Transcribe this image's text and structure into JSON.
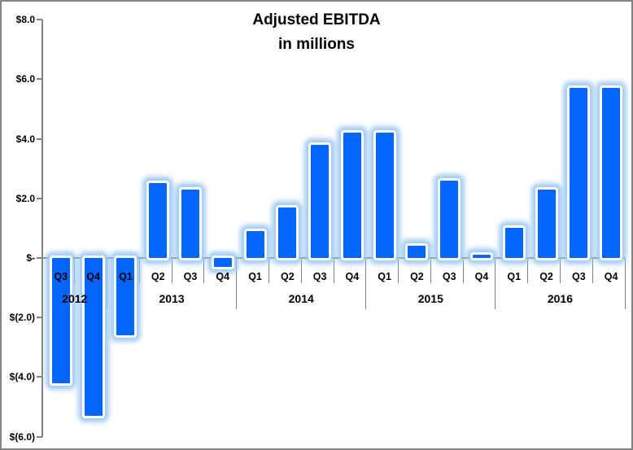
{
  "chart_data": {
    "type": "bar",
    "title": "Adjusted EBITDA",
    "subtitle": "in millions",
    "ylim": [
      -6.0,
      8.0
    ],
    "y_tick_interval": 2.0,
    "grid": false,
    "legend": "none",
    "y_ticks": [
      {
        "label": "$8.0",
        "value": 8.0
      },
      {
        "label": "$6.0",
        "value": 6.0
      },
      {
        "label": "$4.0",
        "value": 4.0
      },
      {
        "label": "$2.0",
        "value": 2.0
      },
      {
        "label": "$-",
        "value": 0.0
      },
      {
        "label": "$(2.0)",
        "value": -2.0
      },
      {
        "label": "$(4.0)",
        "value": -4.0
      },
      {
        "label": "$(6.0)",
        "value": -6.0
      }
    ],
    "groups": [
      {
        "year": "2012",
        "quarters": [
          "Q3",
          "Q4"
        ],
        "values": [
          -4.2,
          -5.3
        ]
      },
      {
        "year": "2013",
        "quarters": [
          "Q1",
          "Q2",
          "Q3",
          "Q4"
        ],
        "values": [
          -2.6,
          2.5,
          2.3,
          -0.3
        ]
      },
      {
        "year": "2014",
        "quarters": [
          "Q1",
          "Q2",
          "Q3",
          "Q4"
        ],
        "values": [
          0.9,
          1.7,
          3.8,
          4.2
        ]
      },
      {
        "year": "2015",
        "quarters": [
          "Q1",
          "Q2",
          "Q3",
          "Q4"
        ],
        "values": [
          4.2,
          0.4,
          2.6,
          0.1
        ]
      },
      {
        "year": "2016",
        "quarters": [
          "Q1",
          "Q2",
          "Q3",
          "Q4"
        ],
        "values": [
          1.0,
          2.3,
          5.7,
          5.7
        ]
      }
    ],
    "colors": {
      "bar_fill": "#0066FF",
      "bar_outline": "#FFFFFF",
      "bar_glow": "#A9CDF3",
      "axis_line": "#808080",
      "text": "#000000",
      "background": "#FFFFFF",
      "figure_border": "#838383"
    }
  }
}
